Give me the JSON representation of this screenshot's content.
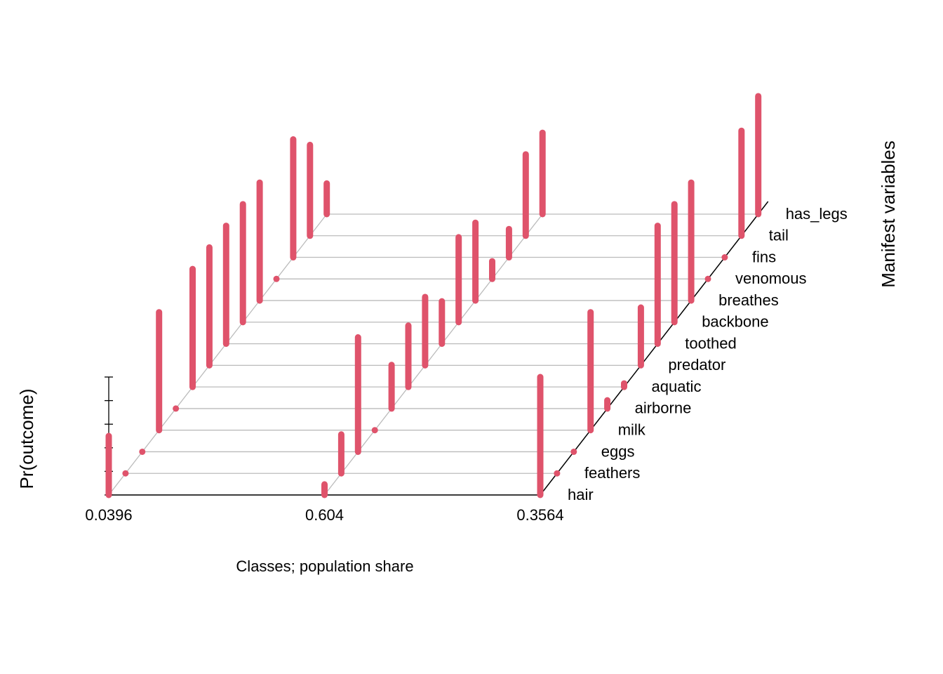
{
  "chart_data": {
    "type": "bar3d",
    "xlabel": "Classes; population share",
    "ylabel": "Manifest variables",
    "zlabel": "Pr(outcome)",
    "categories": [
      "0.0396",
      "0.604",
      "0.3564"
    ],
    "variables": [
      "hair",
      "feathers",
      "eggs",
      "milk",
      "airborne",
      "aquatic",
      "predator",
      "toothed",
      "backbone",
      "breathes",
      "venomous",
      "fins",
      "tail",
      "has_legs"
    ],
    "values": [
      [
        0.5,
        0,
        0,
        1.0,
        0,
        1.0,
        1.0,
        1.0,
        1.0,
        1.0,
        0,
        1.0,
        0.77,
        0.26
      ],
      [
        0.09,
        0.33,
        0.97,
        0,
        0.37,
        0.52,
        0.58,
        0.36,
        0.72,
        0.66,
        0.15,
        0.24,
        0.69,
        0.69
      ],
      [
        1.0,
        0,
        0,
        1.0,
        0.07,
        0.03,
        0.49,
        1.0,
        1.0,
        1.0,
        0,
        0,
        0.89,
        1.0
      ]
    ],
    "color": "#DF536B",
    "zlim": [
      0,
      1
    ],
    "zticks": [
      0,
      0.2,
      0.4,
      0.6,
      0.8,
      1
    ],
    "grid": true
  }
}
